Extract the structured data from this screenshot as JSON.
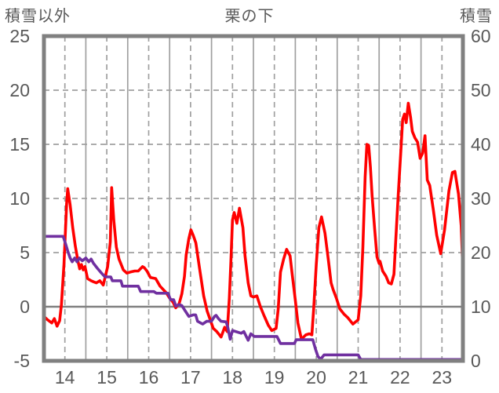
{
  "header": {
    "left_axis_title": "積雪以外",
    "chart_title": "栗の下",
    "right_axis_title": "積雪"
  },
  "colors": {
    "red_series": "#ff0000",
    "purple_series": "#7030a0",
    "grid": "#a0a0a0",
    "frame": "#808080",
    "zero_line": "#808080",
    "text": "#595959",
    "background": "#ffffff"
  },
  "chart_data": {
    "type": "line",
    "title": "栗の下",
    "x_axis": {
      "labels": [
        "14",
        "15",
        "16",
        "17",
        "18",
        "19",
        "20",
        "21",
        "22",
        "23"
      ],
      "days": 10,
      "hours_total": 240,
      "note": "labels centered on dashed mid-day gridlines; solid gridlines at day boundaries"
    },
    "left_axis": {
      "title": "積雪以外",
      "min": -5,
      "max": 25,
      "ticks": [
        25,
        20,
        15,
        10,
        5,
        0,
        -5
      ],
      "dashed_gridlines_at": [
        20,
        15,
        10,
        5
      ],
      "solid_line_at": 0
    },
    "right_axis": {
      "title": "積雪",
      "min": 0,
      "max": 60,
      "ticks": [
        60,
        50,
        40,
        30,
        20,
        10,
        0
      ]
    },
    "legend": "none",
    "series": [
      {
        "name": "red_series",
        "axis": "left",
        "color": "#ff0000",
        "points": [
          [
            0,
            -0.9
          ],
          [
            2,
            -1.2
          ],
          [
            4.5,
            -1.5
          ],
          [
            6,
            -1.1
          ],
          [
            7.5,
            -1.8
          ],
          [
            9,
            -1.3
          ],
          [
            10,
            0.2
          ],
          [
            11.5,
            4
          ],
          [
            13,
            9.5
          ],
          [
            13.6,
            10.9
          ],
          [
            15,
            9.4
          ],
          [
            16.5,
            7.3
          ],
          [
            18,
            5.6
          ],
          [
            19.5,
            4.2
          ],
          [
            20.5,
            3.5
          ],
          [
            21.5,
            3.9
          ],
          [
            22.5,
            3.4
          ],
          [
            23.5,
            3.7
          ],
          [
            25,
            2.6
          ],
          [
            27,
            2.4
          ],
          [
            28.5,
            2.3
          ],
          [
            30,
            2.2
          ],
          [
            32,
            2.4
          ],
          [
            34,
            2.0
          ],
          [
            36.5,
            3.7
          ],
          [
            38,
            6.0
          ],
          [
            38.8,
            11.0
          ],
          [
            40,
            8.0
          ],
          [
            41.5,
            5.5
          ],
          [
            43,
            4.4
          ],
          [
            44,
            4.0
          ],
          [
            45.5,
            3.4
          ],
          [
            47.5,
            3.1
          ],
          [
            49.5,
            3.2
          ],
          [
            52,
            3.3
          ],
          [
            54,
            3.3
          ],
          [
            56.5,
            3.7
          ],
          [
            57.5,
            3.6
          ],
          [
            59,
            3.3
          ],
          [
            61,
            2.7
          ],
          [
            64,
            2.6
          ],
          [
            66.5,
            1.9
          ],
          [
            70,
            1.3
          ],
          [
            72,
            0.8
          ],
          [
            74,
            0.4
          ],
          [
            75.5,
            -0.1
          ],
          [
            77.5,
            0.3
          ],
          [
            79,
            1.2
          ],
          [
            80.5,
            2.8
          ],
          [
            81.5,
            4.8
          ],
          [
            83,
            6.3
          ],
          [
            84.2,
            7.1
          ],
          [
            85.5,
            6.6
          ],
          [
            87,
            5.9
          ],
          [
            89,
            3.7
          ],
          [
            91.5,
            1.0
          ],
          [
            93.5,
            -0.4
          ],
          [
            97,
            -2.0
          ],
          [
            99,
            -2.3
          ],
          [
            101.5,
            -2.8
          ],
          [
            103.5,
            -1.9
          ],
          [
            105,
            -2.3
          ],
          [
            106.2,
            0.8
          ],
          [
            107.1,
            4.2
          ],
          [
            108,
            8.0
          ],
          [
            109,
            8.7
          ],
          [
            110.5,
            7.7
          ],
          [
            112,
            9.1
          ],
          [
            114,
            7.3
          ],
          [
            115.2,
            4.7
          ],
          [
            117,
            2.2
          ],
          [
            118.5,
            1.0
          ],
          [
            120,
            0.9
          ],
          [
            122,
            1.0
          ],
          [
            124,
            0.0
          ],
          [
            126,
            -0.8
          ],
          [
            128.5,
            -1.7
          ],
          [
            130.5,
            -2.2
          ],
          [
            133,
            -2.0
          ],
          [
            134.2,
            -0.2
          ],
          [
            135.5,
            3.2
          ],
          [
            137.3,
            4.4
          ],
          [
            139,
            5.3
          ],
          [
            141,
            4.7
          ],
          [
            142.2,
            3.0
          ],
          [
            144,
            0.6
          ],
          [
            145.5,
            -1.5
          ],
          [
            147.5,
            -3.0
          ],
          [
            150,
            -2.6
          ],
          [
            152,
            -2.5
          ],
          [
            153.5,
            -2.6
          ],
          [
            154.5,
            -0.2
          ],
          [
            156,
            3.9
          ],
          [
            157.5,
            7.3
          ],
          [
            159,
            8.3
          ],
          [
            161,
            6.8
          ],
          [
            163,
            4.2
          ],
          [
            164.5,
            2.2
          ],
          [
            165.6,
            1.6
          ],
          [
            167.5,
            0.8
          ],
          [
            169.5,
            -0.2
          ],
          [
            172,
            -0.7
          ],
          [
            174,
            -1.0
          ],
          [
            177,
            -1.6
          ],
          [
            180,
            -1.2
          ],
          [
            181.5,
            1.0
          ],
          [
            182.7,
            5.5
          ],
          [
            184,
            12.0
          ],
          [
            185,
            15.0
          ],
          [
            186,
            14.9
          ],
          [
            187,
            12.9
          ],
          [
            188,
            10.2
          ],
          [
            189.5,
            7.1
          ],
          [
            190.8,
            4.6
          ],
          [
            192,
            4.0
          ],
          [
            192.5,
            4.2
          ],
          [
            194,
            3.3
          ],
          [
            196,
            2.8
          ],
          [
            197.5,
            2.2
          ],
          [
            199,
            2.1
          ],
          [
            200.5,
            3.0
          ],
          [
            201.5,
            6.0
          ],
          [
            203,
            10.5
          ],
          [
            204.5,
            14.5
          ],
          [
            205.5,
            17.3
          ],
          [
            206.5,
            17.8
          ],
          [
            207.5,
            17.0
          ],
          [
            208.7,
            18.8
          ],
          [
            210,
            17.5
          ],
          [
            211,
            16.2
          ],
          [
            212.5,
            15.6
          ],
          [
            214,
            15.2
          ],
          [
            215.5,
            13.7
          ],
          [
            217,
            14.2
          ],
          [
            218.3,
            15.8
          ],
          [
            219.6,
            11.7
          ],
          [
            221,
            11.2
          ],
          [
            223,
            9.0
          ],
          [
            225,
            6.6
          ],
          [
            227.3,
            4.9
          ],
          [
            229.5,
            7.1
          ],
          [
            232,
            10.7
          ],
          [
            234,
            12.4
          ],
          [
            235.4,
            12.5
          ],
          [
            237.5,
            10.4
          ],
          [
            239,
            7.5
          ],
          [
            240,
            3.2
          ]
        ]
      },
      {
        "name": "purple_series",
        "axis": "right",
        "color": "#7030a0",
        "points": [
          [
            0,
            23
          ],
          [
            11,
            23
          ],
          [
            12.5,
            21.5
          ],
          [
            13.6,
            20.3
          ],
          [
            15,
            19
          ],
          [
            16.2,
            18.3
          ],
          [
            17.6,
            19
          ],
          [
            18.9,
            18.3
          ],
          [
            20.3,
            19
          ],
          [
            22,
            18.5
          ],
          [
            24,
            19
          ],
          [
            25.7,
            18.3
          ],
          [
            27,
            18.8
          ],
          [
            28.4,
            18
          ],
          [
            30.6,
            17.1
          ],
          [
            33,
            16.2
          ],
          [
            35,
            15.5
          ],
          [
            38.3,
            15.5
          ],
          [
            39.2,
            14.8
          ],
          [
            44.1,
            14.8
          ],
          [
            45,
            13.8
          ],
          [
            54,
            13.8
          ],
          [
            55.4,
            12.8
          ],
          [
            63,
            12.8
          ],
          [
            64.4,
            12.5
          ],
          [
            71.1,
            12.5
          ],
          [
            72.5,
            11.3
          ],
          [
            74.3,
            11.3
          ],
          [
            75.6,
            10.1
          ],
          [
            77.4,
            10.4
          ],
          [
            79,
            10.2
          ],
          [
            81,
            9.2
          ],
          [
            83,
            8.2
          ],
          [
            85.5,
            8.5
          ],
          [
            86.9,
            8.5
          ],
          [
            88,
            7.3
          ],
          [
            90.9,
            6.8
          ],
          [
            93.2,
            7.3
          ],
          [
            95.9,
            7.3
          ],
          [
            97.7,
            8.2
          ],
          [
            98.6,
            8.4
          ],
          [
            100,
            7.8
          ],
          [
            101.5,
            7.3
          ],
          [
            104.4,
            7.2
          ],
          [
            105.3,
            6.2
          ],
          [
            106.7,
            4.0
          ],
          [
            108,
            5.6
          ],
          [
            113,
            5.1
          ],
          [
            114.5,
            5.4
          ],
          [
            117,
            3.8
          ],
          [
            118.5,
            5.0
          ],
          [
            120.5,
            4.5
          ],
          [
            133.5,
            4.5
          ],
          [
            135.5,
            3.2
          ],
          [
            143.5,
            3.2
          ],
          [
            144.5,
            3.9
          ],
          [
            154,
            3.9
          ],
          [
            155.5,
            2.2
          ],
          [
            157,
            0.8
          ],
          [
            158.5,
            0.3
          ],
          [
            160.5,
            1.1
          ],
          [
            180,
            1.1
          ],
          [
            181.5,
            0.25
          ],
          [
            240,
            0.25
          ]
        ]
      }
    ]
  }
}
